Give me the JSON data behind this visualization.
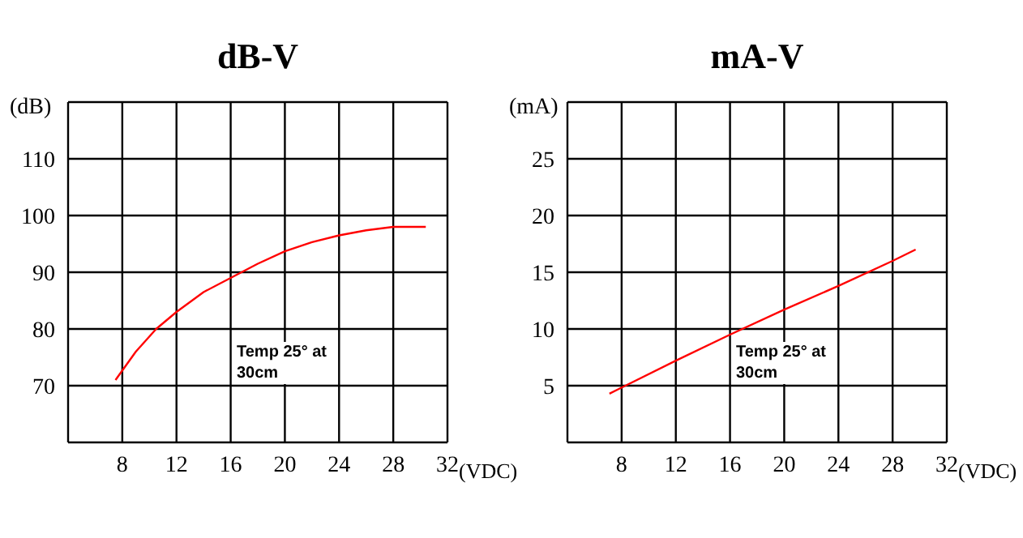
{
  "chart_data": [
    {
      "type": "line",
      "title": "dB-V",
      "ylabel": "(dB)",
      "xlabel": "(VDC)",
      "xlim": [
        4,
        32
      ],
      "xticks": [
        {
          "value": 4,
          "label": null
        },
        8,
        12,
        16,
        20,
        24,
        28,
        32
      ],
      "ylim": [
        60,
        120
      ],
      "yticks": [
        {
          "value": 60,
          "label": null
        },
        70,
        80,
        90,
        100,
        110,
        {
          "value": 120,
          "label": null
        }
      ],
      "grid": true,
      "marker": "none",
      "annotations": [
        "Temp 25° at 30cm"
      ],
      "series": [
        {
          "color": "#ff0000",
          "x": [
            7.5,
            9,
            10.5,
            12,
            14,
            16,
            18,
            20,
            22,
            24,
            26,
            28,
            30.4
          ],
          "values": [
            71,
            76,
            80,
            83,
            86.5,
            89,
            91.5,
            93.7,
            95.3,
            96.5,
            97.4,
            98,
            98
          ]
        }
      ]
    },
    {
      "type": "line",
      "title": "mA-V",
      "ylabel": "(mA)",
      "xlabel": "(VDC)",
      "xlim": [
        4,
        32
      ],
      "xticks": [
        {
          "value": 4,
          "label": null
        },
        8,
        12,
        16,
        20,
        24,
        28,
        32
      ],
      "ylim": [
        0,
        30
      ],
      "yticks": [
        {
          "value": 0,
          "label": null
        },
        5,
        10,
        15,
        20,
        25,
        {
          "value": 30,
          "label": null
        }
      ],
      "grid": true,
      "marker": "none",
      "annotations": [
        "Temp 25° at 30cm"
      ],
      "series": [
        {
          "color": "#ff0000",
          "x": [
            7.1,
            12,
            16,
            20,
            24,
            28,
            29.7
          ],
          "values": [
            4.3,
            7.2,
            9.5,
            11.7,
            13.8,
            16,
            17
          ]
        }
      ]
    }
  ]
}
